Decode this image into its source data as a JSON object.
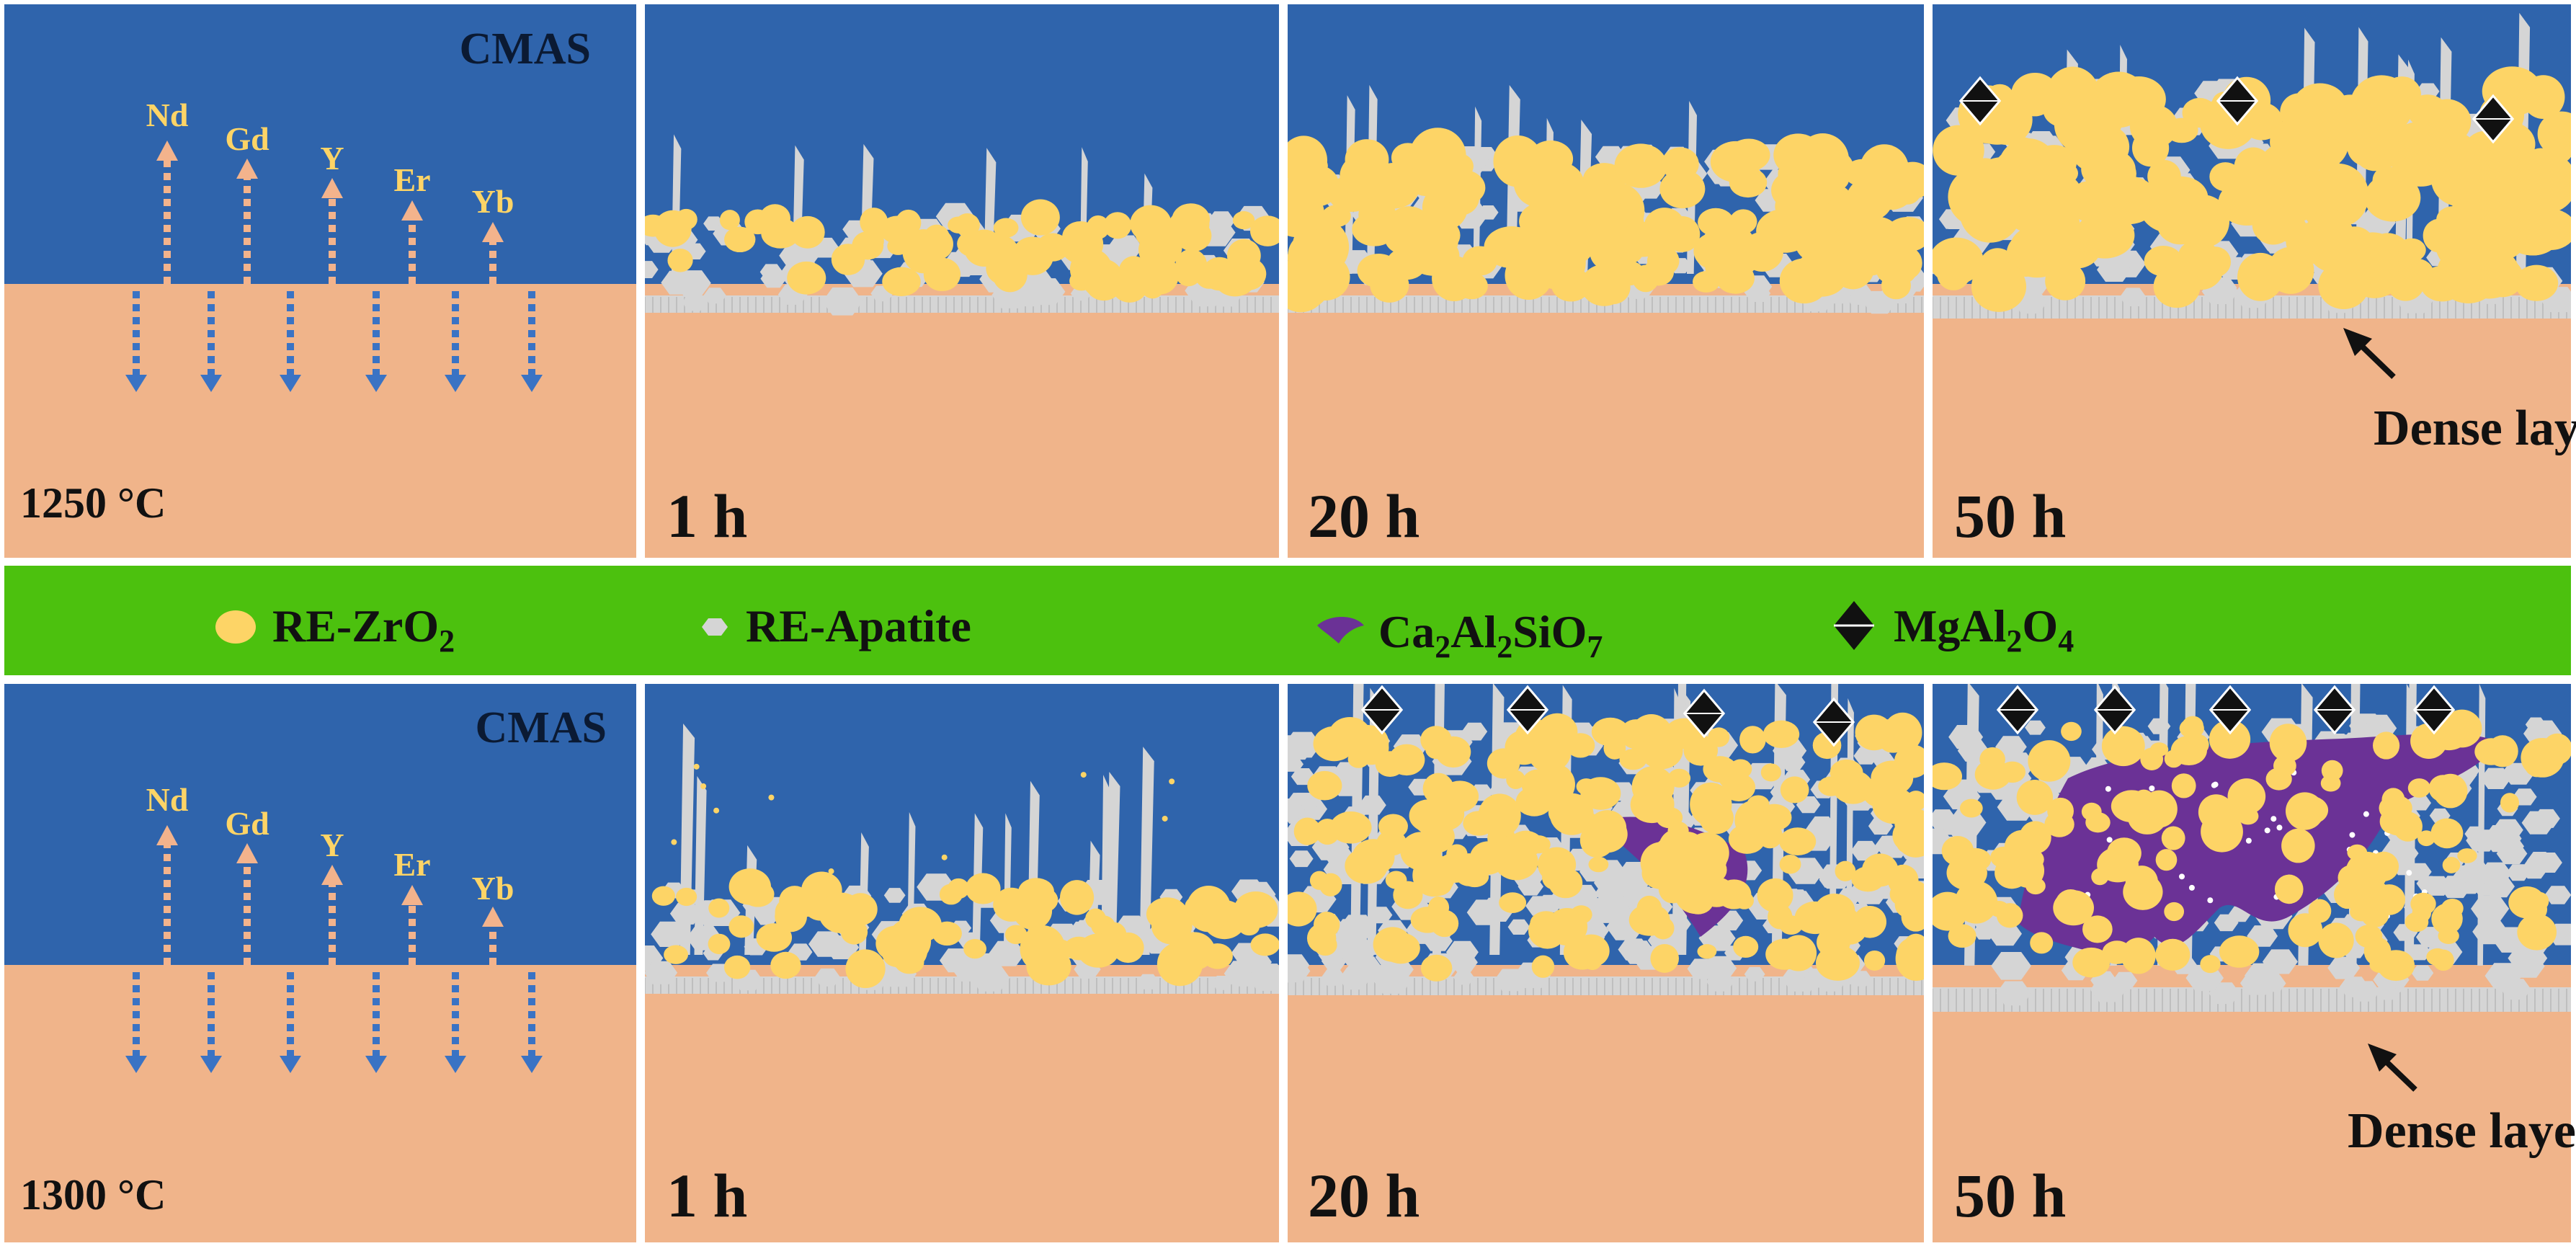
{
  "colors": {
    "cmas_blue": "#2f64ac",
    "substrate_peach": "#f0b48a",
    "legend_green": "#4cc10e",
    "zro2_yellow": "#fdd466",
    "apatite_gray": "#d5d5d5",
    "melilite_purple": "#6b3296",
    "spinel_black": "#111111",
    "arrow_up": "#f3b38c",
    "arrow_down": "#3a73c4",
    "text_dark": "#0b1a33",
    "text_black": "#111111"
  },
  "rows": [
    {
      "temperature": "1250 °C",
      "cmas_label": "CMAS",
      "elements": [
        "Nd",
        "Gd",
        "Y",
        "Er",
        "Yb"
      ],
      "times": [
        "1 h",
        "20 h",
        "50 h"
      ],
      "annotation": "Dense layer"
    },
    {
      "temperature": "1300 °C",
      "cmas_label": "CMAS",
      "elements": [
        "Nd",
        "Gd",
        "Y",
        "Er",
        "Yb"
      ],
      "times": [
        "1 h",
        "20 h",
        "50 h"
      ],
      "annotation": "Dense layer"
    }
  ],
  "legend": {
    "zro2": {
      "prefix": "RE-ZrO",
      "sub": "2",
      "icon": "yellow-ellipse-icon"
    },
    "apatite": {
      "text": "RE-Apatite",
      "icon": "gray-hexagon-icon"
    },
    "melilite": {
      "p1": "Ca",
      "s1": "2",
      "p2": "Al",
      "s2": "2",
      "p3": "SiO",
      "s3": "7",
      "icon": "purple-blob-icon"
    },
    "spinel": {
      "p1": "MgAl",
      "s1": "2",
      "p2": "O",
      "s2": "4",
      "icon": "black-octahedron-icon"
    }
  }
}
